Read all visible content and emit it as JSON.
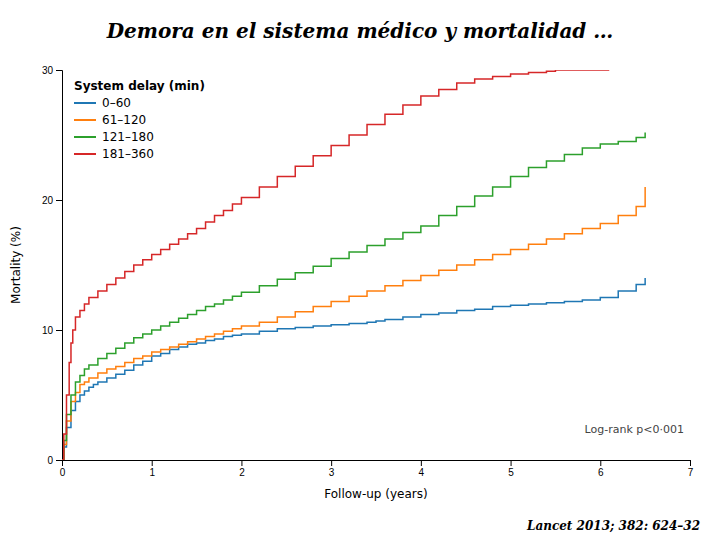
{
  "chart_data": {
    "type": "step",
    "title": "Demora en el sistema médico y mortalidad …",
    "x_label": "Follow-up (years)",
    "y_label": "Mortality (%)",
    "xlim": [
      0,
      7
    ],
    "ylim": [
      0,
      30
    ],
    "xticks": [
      0,
      1,
      2,
      3,
      4,
      5,
      6,
      7
    ],
    "yticks": [
      0,
      10,
      20,
      30
    ],
    "grid": false,
    "legend": "top-left",
    "legend_title": "System delay (min)",
    "annotations": [
      "Log-rank p<0·001",
      "Lancet 2013; 382: 624–32"
    ],
    "series": [
      {
        "name": "0–60",
        "x": [
          0,
          0.02,
          0.05,
          0.1,
          0.15,
          0.2,
          0.25,
          0.3,
          0.35,
          0.4,
          0.5,
          0.6,
          0.7,
          0.8,
          0.9,
          1.0,
          1.1,
          1.2,
          1.3,
          1.4,
          1.5,
          1.6,
          1.7,
          1.8,
          1.9,
          2.0,
          2.2,
          2.4,
          2.6,
          2.8,
          3.0,
          3.2,
          3.4,
          3.5,
          3.6,
          3.8,
          4.0,
          4.2,
          4.4,
          4.6,
          4.8,
          5.0,
          5.2,
          5.4,
          5.6,
          5.8,
          6.0,
          6.2,
          6.4,
          6.5
        ],
        "values": [
          0,
          1.0,
          2.5,
          3.8,
          4.5,
          5.0,
          5.3,
          5.6,
          5.8,
          6.0,
          6.3,
          6.6,
          6.9,
          7.3,
          7.6,
          8.0,
          8.2,
          8.5,
          8.7,
          8.9,
          9.0,
          9.2,
          9.3,
          9.5,
          9.6,
          9.7,
          9.9,
          10.1,
          10.2,
          10.3,
          10.4,
          10.5,
          10.6,
          10.7,
          10.8,
          11.0,
          11.2,
          11.3,
          11.5,
          11.6,
          11.8,
          11.9,
          12.0,
          12.1,
          12.2,
          12.3,
          12.5,
          13.0,
          13.5,
          14.0
        ]
      },
      {
        "name": "61–120",
        "x": [
          0,
          0.02,
          0.05,
          0.1,
          0.15,
          0.2,
          0.25,
          0.3,
          0.4,
          0.5,
          0.6,
          0.7,
          0.8,
          0.9,
          1.0,
          1.1,
          1.2,
          1.3,
          1.4,
          1.5,
          1.6,
          1.7,
          1.8,
          1.9,
          2.0,
          2.2,
          2.4,
          2.6,
          2.8,
          3.0,
          3.2,
          3.4,
          3.6,
          3.8,
          4.0,
          4.2,
          4.4,
          4.6,
          4.8,
          5.0,
          5.2,
          5.4,
          5.6,
          5.8,
          6.0,
          6.2,
          6.4,
          6.5
        ],
        "values": [
          0,
          1.2,
          3.0,
          4.5,
          5.2,
          5.8,
          6.0,
          6.3,
          6.7,
          7.0,
          7.2,
          7.5,
          7.8,
          8.0,
          8.3,
          8.5,
          8.7,
          8.9,
          9.1,
          9.3,
          9.5,
          9.7,
          9.9,
          10.1,
          10.3,
          10.6,
          11.0,
          11.4,
          11.8,
          12.2,
          12.6,
          13.0,
          13.4,
          13.8,
          14.2,
          14.6,
          15.0,
          15.4,
          15.8,
          16.2,
          16.6,
          17.0,
          17.4,
          17.8,
          18.2,
          18.8,
          19.5,
          21.0
        ]
      },
      {
        "name": "121–180",
        "x": [
          0,
          0.02,
          0.05,
          0.1,
          0.15,
          0.2,
          0.25,
          0.3,
          0.4,
          0.5,
          0.6,
          0.7,
          0.8,
          0.9,
          1.0,
          1.1,
          1.2,
          1.3,
          1.4,
          1.5,
          1.6,
          1.7,
          1.8,
          1.9,
          2.0,
          2.2,
          2.4,
          2.6,
          2.8,
          3.0,
          3.2,
          3.4,
          3.6,
          3.8,
          4.0,
          4.2,
          4.4,
          4.6,
          4.8,
          5.0,
          5.2,
          5.4,
          5.6,
          5.8,
          6.0,
          6.2,
          6.4,
          6.5
        ],
        "values": [
          0,
          1.5,
          3.5,
          5.0,
          6.0,
          6.5,
          7.0,
          7.3,
          7.8,
          8.2,
          8.6,
          9.0,
          9.4,
          9.7,
          10.0,
          10.3,
          10.6,
          10.9,
          11.2,
          11.5,
          11.8,
          12.0,
          12.3,
          12.6,
          12.9,
          13.4,
          13.9,
          14.4,
          14.9,
          15.5,
          16.0,
          16.5,
          17.0,
          17.5,
          18.0,
          18.8,
          19.5,
          20.3,
          21.0,
          21.8,
          22.5,
          23.0,
          23.5,
          24.0,
          24.3,
          24.5,
          24.8,
          25.2
        ]
      },
      {
        "name": "181–360",
        "x": [
          0,
          0.02,
          0.05,
          0.08,
          0.1,
          0.12,
          0.15,
          0.2,
          0.25,
          0.3,
          0.4,
          0.5,
          0.6,
          0.7,
          0.8,
          0.9,
          1.0,
          1.1,
          1.2,
          1.3,
          1.4,
          1.5,
          1.6,
          1.7,
          1.8,
          1.9,
          2.0,
          2.2,
          2.4,
          2.6,
          2.8,
          3.0,
          3.2,
          3.4,
          3.6,
          3.8,
          4.0,
          4.2,
          4.4,
          4.6,
          4.8,
          5.0,
          5.2,
          5.4,
          5.5,
          5.6,
          5.7,
          5.8,
          5.9,
          6.0,
          6.1
        ],
        "values": [
          0,
          2.0,
          5.0,
          7.5,
          9.0,
          10.0,
          11.0,
          11.5,
          12.0,
          12.5,
          13.0,
          13.5,
          14.0,
          14.5,
          15.0,
          15.4,
          15.8,
          16.2,
          16.6,
          17.0,
          17.4,
          17.8,
          18.3,
          18.8,
          19.2,
          19.7,
          20.2,
          21.0,
          21.8,
          22.6,
          23.4,
          24.2,
          25.0,
          25.8,
          26.6,
          27.3,
          28.0,
          28.5,
          29.0,
          29.3,
          29.5,
          29.7,
          29.8,
          29.9,
          30.0,
          30.0,
          30.0,
          30.0,
          30.0,
          30.0,
          30.0
        ]
      }
    ]
  }
}
